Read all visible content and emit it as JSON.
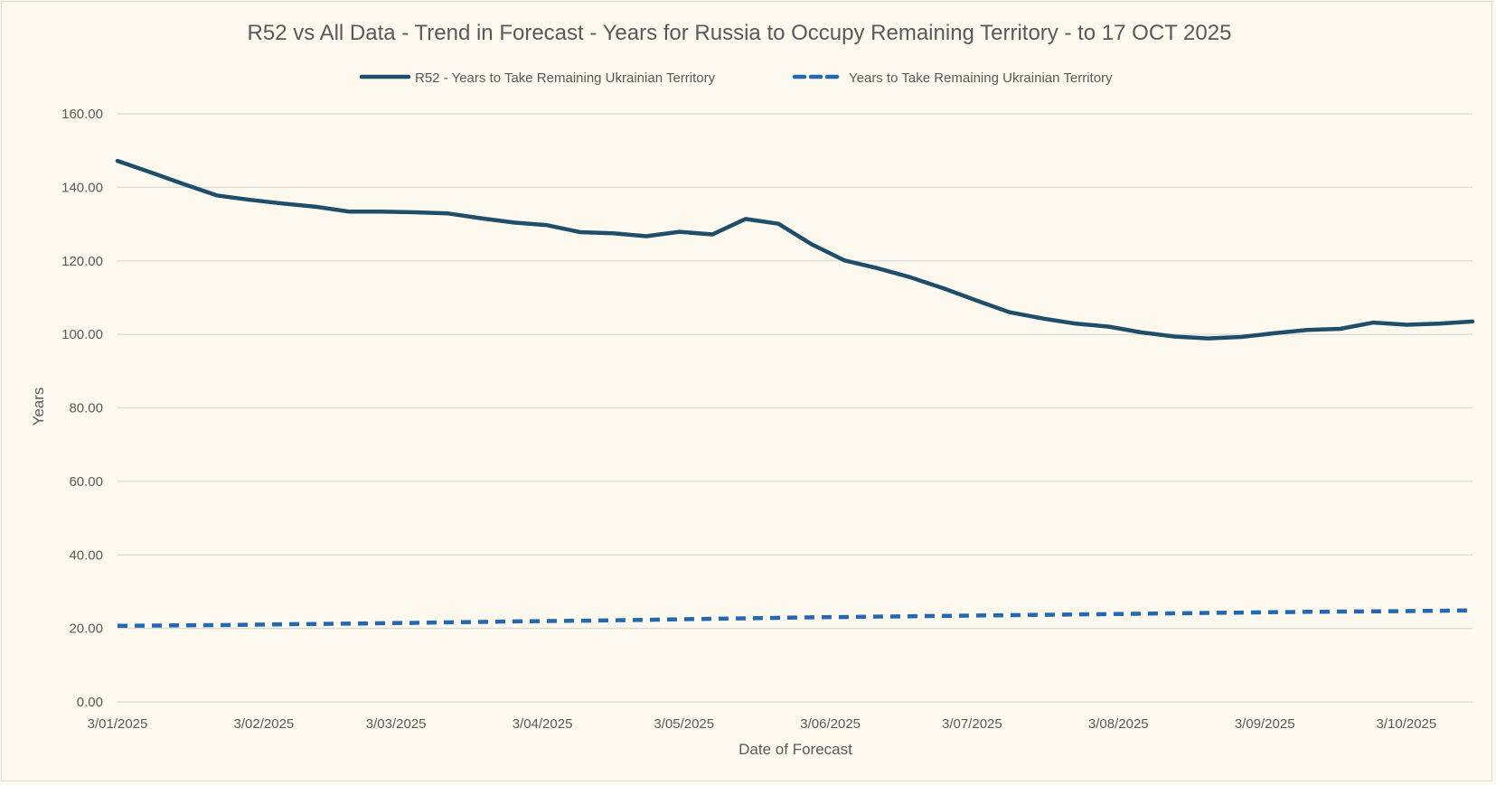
{
  "chart_data": {
    "type": "line",
    "title": "R52 vs All Data  - Trend in Forecast - Years for Russia to Occupy Remaining Territory - to 17 OCT 2025",
    "xlabel": "Date of Forecast",
    "ylabel": "Years",
    "ylim": [
      0,
      160
    ],
    "xlim": [
      "2025-01-03",
      "2025-10-17"
    ],
    "y_ticks": [
      "0.00",
      "20.00",
      "40.00",
      "60.00",
      "80.00",
      "100.00",
      "120.00",
      "140.00",
      "160.00"
    ],
    "x_ticks": [
      {
        "date": "2025-01-03",
        "label": "3/01/2025"
      },
      {
        "date": "2025-02-03",
        "label": "3/02/2025"
      },
      {
        "date": "2025-03-03",
        "label": "3/03/2025"
      },
      {
        "date": "2025-04-03",
        "label": "3/04/2025"
      },
      {
        "date": "2025-05-03",
        "label": "3/05/2025"
      },
      {
        "date": "2025-06-03",
        "label": "3/06/2025"
      },
      {
        "date": "2025-07-03",
        "label": "3/07/2025"
      },
      {
        "date": "2025-08-03",
        "label": "3/08/2025"
      },
      {
        "date": "2025-09-03",
        "label": "3/09/2025"
      },
      {
        "date": "2025-10-03",
        "label": "3/10/2025"
      }
    ],
    "grid": true,
    "legend_position": "top",
    "series": [
      {
        "name": "R52 - Years to Take Remaining Ukrainian Territory",
        "style": "solid",
        "color": "#1f4e6b",
        "points": [
          [
            "2025-01-03",
            147.2
          ],
          [
            "2025-01-10",
            144.1
          ],
          [
            "2025-01-17",
            140.9
          ],
          [
            "2025-01-24",
            137.8
          ],
          [
            "2025-01-31",
            136.6
          ],
          [
            "2025-02-07",
            135.6
          ],
          [
            "2025-02-14",
            134.7
          ],
          [
            "2025-02-21",
            133.4
          ],
          [
            "2025-02-28",
            133.4
          ],
          [
            "2025-03-07",
            133.2
          ],
          [
            "2025-03-14",
            132.9
          ],
          [
            "2025-03-21",
            131.6
          ],
          [
            "2025-03-28",
            130.4
          ],
          [
            "2025-04-04",
            129.7
          ],
          [
            "2025-04-11",
            127.8
          ],
          [
            "2025-04-18",
            127.5
          ],
          [
            "2025-04-25",
            126.7
          ],
          [
            "2025-05-02",
            127.9
          ],
          [
            "2025-05-09",
            127.2
          ],
          [
            "2025-05-16",
            131.4
          ],
          [
            "2025-05-23",
            130.1
          ],
          [
            "2025-05-30",
            124.5
          ],
          [
            "2025-06-06",
            120.1
          ],
          [
            "2025-06-13",
            118.0
          ],
          [
            "2025-06-20",
            115.5
          ],
          [
            "2025-06-27",
            112.5
          ],
          [
            "2025-07-04",
            109.2
          ],
          [
            "2025-07-11",
            106.0
          ],
          [
            "2025-07-18",
            104.3
          ],
          [
            "2025-07-25",
            102.9
          ],
          [
            "2025-08-01",
            102.1
          ],
          [
            "2025-08-08",
            100.5
          ],
          [
            "2025-08-15",
            99.4
          ],
          [
            "2025-08-22",
            98.9
          ],
          [
            "2025-08-29",
            99.3
          ],
          [
            "2025-09-05",
            100.3
          ],
          [
            "2025-09-12",
            101.2
          ],
          [
            "2025-09-19",
            101.5
          ],
          [
            "2025-09-26",
            103.2
          ],
          [
            "2025-10-03",
            102.6
          ],
          [
            "2025-10-10",
            102.9
          ],
          [
            "2025-10-17",
            103.5
          ]
        ]
      },
      {
        "name": "Years to Take Remaining Ukrainian Territory",
        "style": "dashed",
        "color": "#2368b0",
        "points": [
          [
            "2025-01-03",
            20.7
          ],
          [
            "2025-01-24",
            20.9
          ],
          [
            "2025-02-14",
            21.2
          ],
          [
            "2025-03-07",
            21.5
          ],
          [
            "2025-03-28",
            21.9
          ],
          [
            "2025-04-18",
            22.2
          ],
          [
            "2025-05-09",
            22.6
          ],
          [
            "2025-05-30",
            23.0
          ],
          [
            "2025-06-20",
            23.3
          ],
          [
            "2025-07-11",
            23.6
          ],
          [
            "2025-08-01",
            23.9
          ],
          [
            "2025-08-22",
            24.2
          ],
          [
            "2025-09-12",
            24.5
          ],
          [
            "2025-10-03",
            24.7
          ],
          [
            "2025-10-17",
            24.9
          ]
        ]
      }
    ]
  }
}
